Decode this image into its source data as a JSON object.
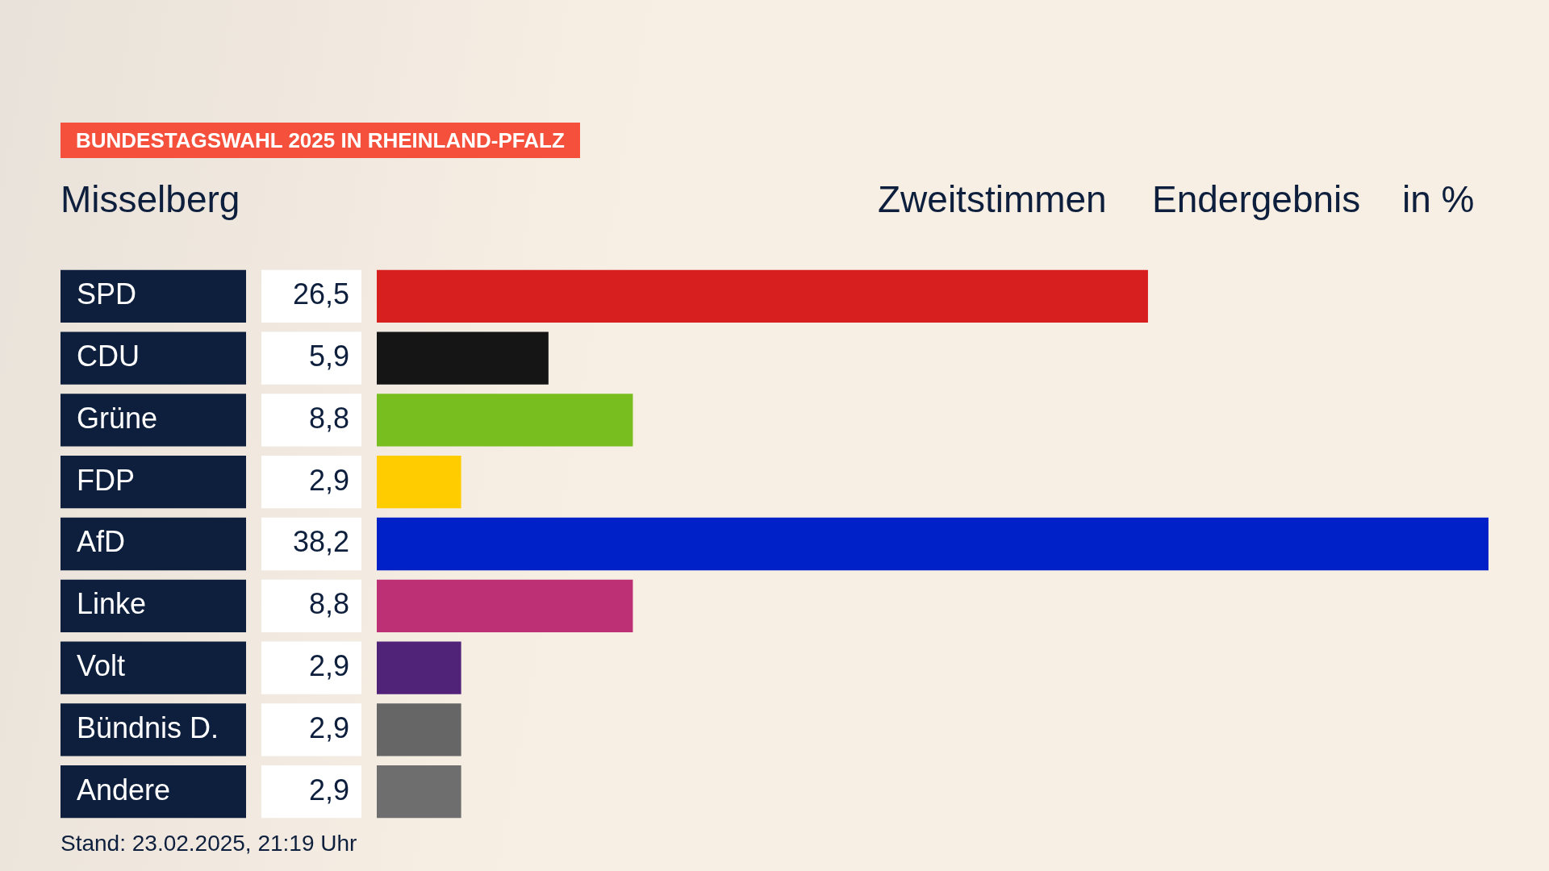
{
  "chart_data": {
    "type": "bar",
    "orientation": "horizontal",
    "title": "Misselberg",
    "subtitle": "BUNDESTAGSWAHL 2025 IN RHEINLAND-PFALZ",
    "annotations": [
      "Zweitstimmen",
      "Endergebnis",
      "in %",
      "Stand: 23.02.2025, 21:19 Uhr"
    ],
    "categories": [
      "SPD",
      "CDU",
      "Grüne",
      "FDP",
      "AfD",
      "Linke",
      "Volt",
      "Bündnis D.",
      "Andere"
    ],
    "values": [
      26.5,
      5.9,
      8.8,
      2.9,
      38.2,
      8.8,
      2.9,
      2.9,
      2.9
    ],
    "colors": [
      "#d71f1f",
      "#151515",
      "#78be1e",
      "#ffcc00",
      "#0021c7",
      "#bd3075",
      "#502379",
      "#666666",
      "#6e6e6e"
    ],
    "value_labels": [
      "26,5",
      "5,9",
      "8,8",
      "2,9",
      "38,2",
      "8,8",
      "2,9",
      "2,9",
      "2,9"
    ]
  }
}
